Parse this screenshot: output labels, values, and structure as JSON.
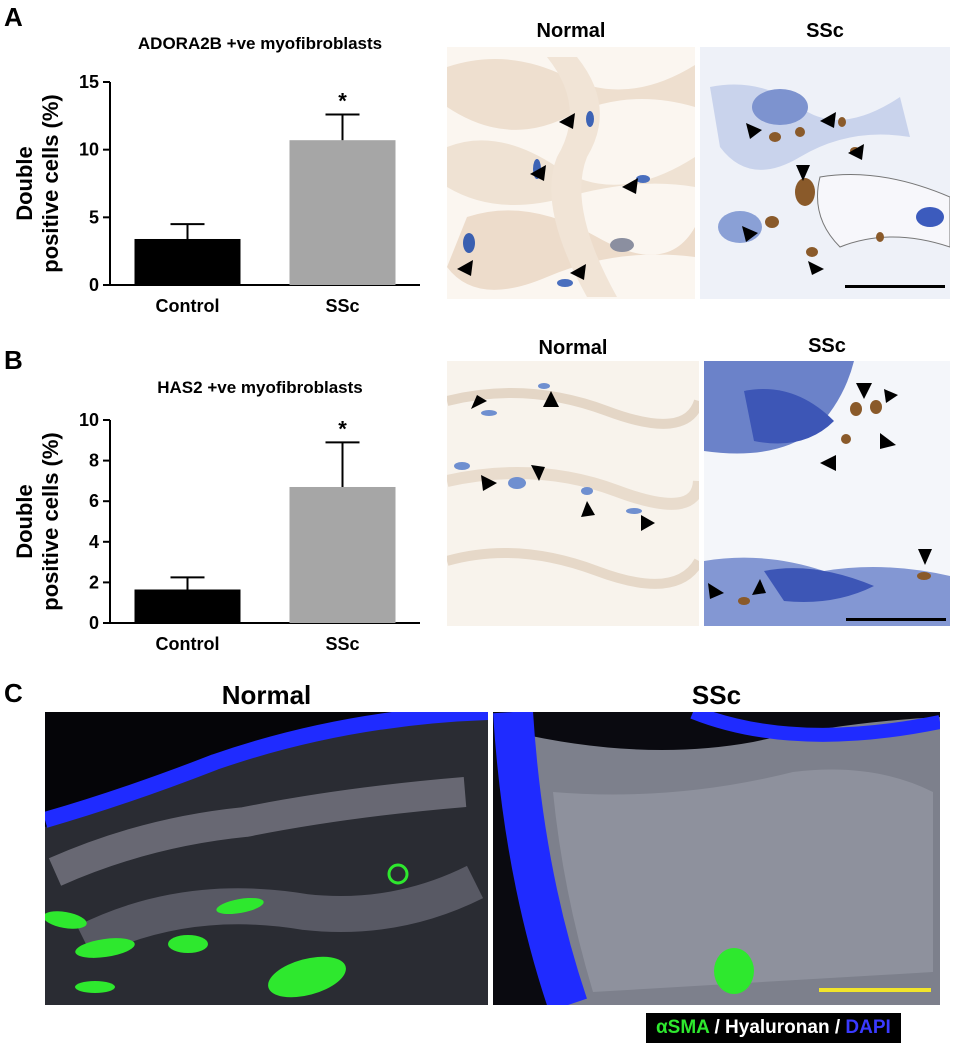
{
  "panels": {
    "a": {
      "letter": "A",
      "micro_left": "Normal",
      "micro_right": "SSc"
    },
    "b": {
      "letter": "B",
      "micro_left": "Normal",
      "micro_right": "SSc"
    },
    "c": {
      "letter": "C",
      "left": "Normal",
      "right": "SSc",
      "legend": {
        "part1": "αSMA",
        "part2": " / Hyaluronan / ",
        "part3": "DAPI"
      }
    }
  },
  "colors": {
    "control": "#000000",
    "ssc": "#a6a6a6",
    "marker_green": "#2ee82e",
    "dapi_blue": "#1f2bff"
  },
  "chart_data": [
    {
      "type": "bar",
      "title": "ADORA2B +ve myofibroblasts",
      "ylabel": [
        "Double",
        "positive cells (%)"
      ],
      "categories": [
        "Control",
        "SSc"
      ],
      "values": [
        3.4,
        10.7
      ],
      "errors": [
        1.1,
        1.9
      ],
      "significance": [
        "",
        "*"
      ],
      "ylim": [
        0,
        15
      ],
      "yticks": [
        0,
        5,
        10,
        15
      ]
    },
    {
      "type": "bar",
      "title": "HAS2 +ve myofibroblasts",
      "ylabel": [
        "Double",
        "positive cells (%)"
      ],
      "categories": [
        "Control",
        "SSc"
      ],
      "values": [
        1.65,
        6.7
      ],
      "errors": [
        0.6,
        2.2
      ],
      "significance": [
        "",
        "*"
      ],
      "ylim": [
        0,
        10
      ],
      "yticks": [
        0,
        2,
        4,
        6,
        8,
        10
      ]
    }
  ]
}
